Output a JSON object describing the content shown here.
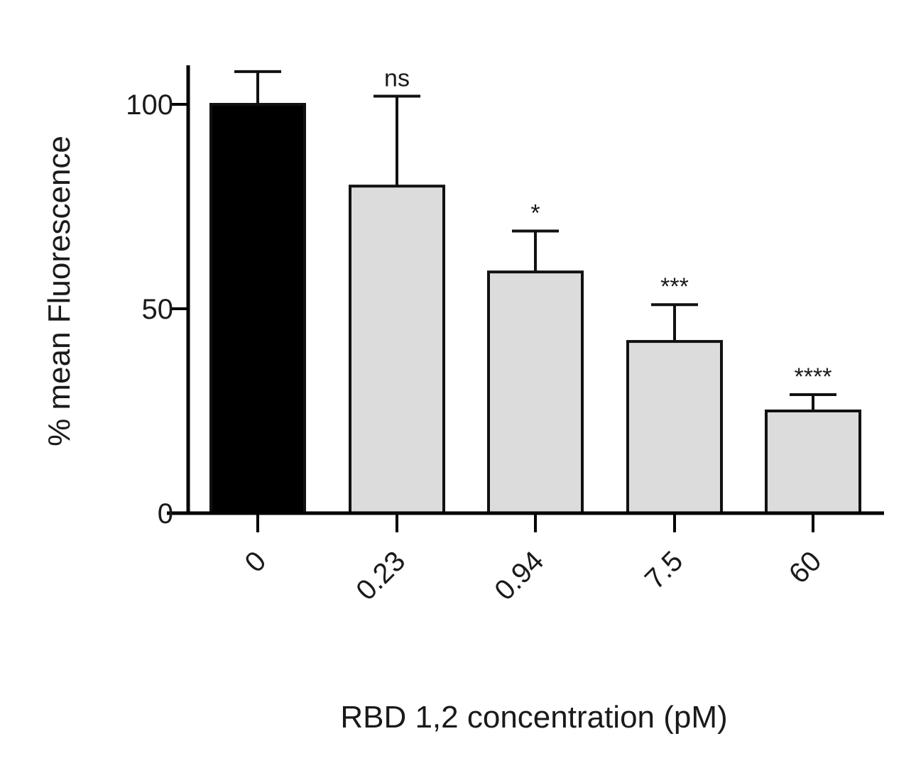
{
  "chart_data": {
    "type": "bar",
    "categories": [
      "0",
      "0.23",
      "0.94",
      "7.5",
      "60"
    ],
    "values": [
      100,
      80,
      59,
      42,
      25
    ],
    "error_upper": [
      108,
      102,
      69,
      51,
      29
    ],
    "significance": [
      "",
      "ns",
      "*",
      "***",
      "****"
    ],
    "bar_colors": [
      "#000000",
      "#dcdcdc",
      "#dcdcdc",
      "#dcdcdc",
      "#dcdcdc"
    ],
    "xlabel": "RBD 1,2 concentration (pM)",
    "ylabel": "% mean Fluorescence",
    "ylim": [
      0,
      110
    ],
    "yticks": [
      0,
      50,
      100
    ],
    "ytick_labels": [
      "0",
      "50",
      "100"
    ],
    "grid": false,
    "legend": false
  }
}
